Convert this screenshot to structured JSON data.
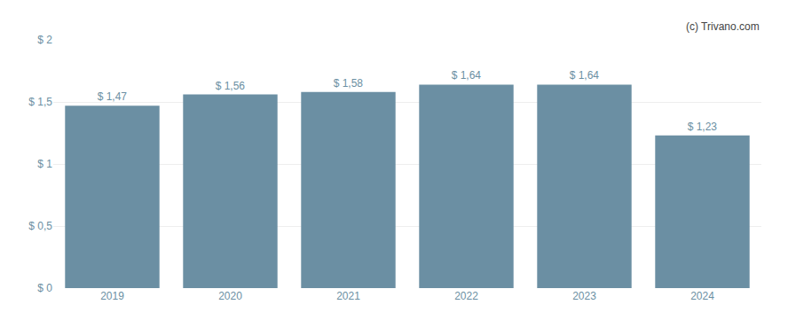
{
  "chart_data": {
    "type": "bar",
    "categories": [
      "2019",
      "2020",
      "2021",
      "2022",
      "2023",
      "2024"
    ],
    "values": [
      1.47,
      1.56,
      1.58,
      1.64,
      1.64,
      1.23
    ],
    "value_labels": [
      "$ 1,47",
      "$ 1,56",
      "$ 1,58",
      "$ 1,64",
      "$ 1,64",
      "$ 1,23"
    ],
    "data_labels": true,
    "color": "#6b8fa3",
    "ylim": [
      0,
      2.0
    ],
    "yticks": [
      {
        "value": 0,
        "label": "$ 0"
      },
      {
        "value": 0.5,
        "label": "$ 0,5"
      },
      {
        "value": 1.0,
        "label": "$ 1"
      },
      {
        "value": 1.5,
        "label": "$ 1,5"
      },
      {
        "value": 2.0,
        "label": "$ 2"
      }
    ],
    "grid": true,
    "annotations": [
      "(c) Trivano.com"
    ]
  }
}
